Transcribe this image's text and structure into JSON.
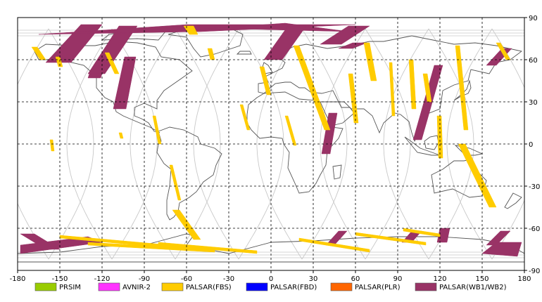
{
  "map": {
    "x_ticks": [
      "-180",
      "-150",
      "-120",
      "-90",
      "-60",
      "-30",
      "0",
      "30",
      "60",
      "90",
      "120",
      "150",
      "180"
    ],
    "y_ticks": [
      "90",
      "60",
      "30",
      "0",
      "-30",
      "-60",
      "-90"
    ],
    "lon_range": [
      -180,
      180
    ],
    "lat_range": [
      -90,
      90
    ],
    "grid": "dashed",
    "land_color": "#ffffff",
    "coastline_color": "#555555"
  },
  "legend": {
    "items": [
      {
        "label": "PRSIM",
        "color": "#99cc00"
      },
      {
        "label": "AVNIR-2",
        "color": "#ff33ff"
      },
      {
        "label": "PALSAR(FBS)",
        "color": "#ffcc00"
      },
      {
        "label": "PALSAR(FBD)",
        "color": "#0000ff"
      },
      {
        "label": "PALSAR(PLR)",
        "color": "#ff6600"
      },
      {
        "label": "PALSAR(WB1/WB2)",
        "color": "#993366"
      }
    ]
  },
  "chart_data": {
    "type": "map",
    "series": [
      {
        "name": "PALSAR(WB1/WB2)",
        "color": "#993366",
        "swaths": [
          [
            [
              -160,
              58
            ],
            [
              -142,
              58
            ],
            [
              -120,
              85
            ],
            [
              -135,
              85
            ]
          ],
          [
            [
              -130,
              50
            ],
            [
              -118,
              50
            ],
            [
              -95,
              84
            ],
            [
              -108,
              84
            ]
          ],
          [
            [
              -112,
              25
            ],
            [
              -103,
              25
            ],
            [
              -96,
              62
            ],
            [
              -104,
              62
            ]
          ],
          [
            [
              -165,
              78
            ],
            [
              -60,
              85
            ],
            [
              60,
              85
            ],
            [
              -50,
              80
            ]
          ],
          [
            [
              -60,
              81
            ],
            [
              10,
              86
            ],
            [
              55,
              80
            ],
            [
              -25,
              82
            ]
          ],
          [
            [
              -5,
              60
            ],
            [
              8,
              60
            ],
            [
              25,
              84
            ],
            [
              12,
              84
            ]
          ],
          [
            [
              35,
              71
            ],
            [
              50,
              71
            ],
            [
              70,
              84
            ],
            [
              55,
              84
            ]
          ],
          [
            [
              48,
              68
            ],
            [
              58,
              72
            ],
            [
              68,
              72
            ],
            [
              58,
              68
            ]
          ],
          [
            [
              36,
              -7
            ],
            [
              42,
              -7
            ],
            [
              47,
              22
            ],
            [
              41,
              22
            ]
          ],
          [
            [
              101,
              3
            ],
            [
              107,
              3
            ],
            [
              122,
              56
            ],
            [
              116,
              56
            ]
          ],
          [
            [
              153,
              56
            ],
            [
              160,
              56
            ],
            [
              171,
              68
            ],
            [
              164,
              68
            ]
          ],
          [
            [
              -130,
              47
            ],
            [
              -121,
              47
            ],
            [
              -120,
              50
            ],
            [
              -129,
              50
            ]
          ],
          [
            [
              -178,
              -64
            ],
            [
              -168,
              -64
            ],
            [
              -150,
              -75
            ],
            [
              -160,
              -75
            ]
          ],
          [
            [
              -178,
              -72
            ],
            [
              -130,
              -66
            ],
            [
              -120,
              -70
            ],
            [
              -178,
              -78
            ]
          ],
          [
            [
              48,
              -62
            ],
            [
              54,
              -62
            ],
            [
              45,
              -72
            ],
            [
              39,
              -72
            ]
          ],
          [
            [
              100,
              -62
            ],
            [
              107,
              -62
            ],
            [
              100,
              -70
            ],
            [
              93,
              -70
            ]
          ],
          [
            [
              163,
              -62
            ],
            [
              170,
              -62
            ],
            [
              160,
              -72
            ],
            [
              153,
              -72
            ]
          ],
          [
            [
              160,
              -70
            ],
            [
              178,
              -70
            ],
            [
              175,
              -80
            ],
            [
              150,
              -78
            ]
          ],
          [
            [
              120,
              -60
            ],
            [
              127,
              -60
            ],
            [
              125,
              -70
            ],
            [
              118,
              -70
            ]
          ]
        ]
      },
      {
        "name": "PALSAR(FBS)",
        "color": "#ffcc00",
        "swaths": [
          [
            [
              -170,
              69
            ],
            [
              -166,
              69
            ],
            [
              -160,
              60
            ],
            [
              -164,
              60
            ]
          ],
          [
            [
              -153,
              62
            ],
            [
              -150,
              62
            ],
            [
              -148,
              55
            ],
            [
              -151,
              55
            ]
          ],
          [
            [
              -118,
              65
            ],
            [
              -115,
              65
            ],
            [
              -108,
              50
            ],
            [
              -111,
              50
            ]
          ],
          [
            [
              -62,
              84
            ],
            [
              -55,
              84
            ],
            [
              -52,
              78
            ],
            [
              -58,
              78
            ]
          ],
          [
            [
              -45,
              68
            ],
            [
              -42,
              68
            ],
            [
              -40,
              60
            ],
            [
              -43,
              60
            ]
          ],
          [
            [
              -22,
              28
            ],
            [
              -20,
              28
            ],
            [
              -15,
              10
            ],
            [
              -17,
              10
            ]
          ],
          [
            [
              -8,
              55
            ],
            [
              -5,
              55
            ],
            [
              0,
              35
            ],
            [
              -3,
              35
            ]
          ],
          [
            [
              10,
              20
            ],
            [
              12,
              20
            ],
            [
              18,
              -1
            ],
            [
              16,
              -1
            ]
          ],
          [
            [
              16,
              70
            ],
            [
              20,
              70
            ],
            [
              42,
              10
            ],
            [
              38,
              10
            ]
          ],
          [
            [
              55,
              50
            ],
            [
              58,
              50
            ],
            [
              62,
              15
            ],
            [
              59,
              15
            ]
          ],
          [
            [
              66,
              72
            ],
            [
              70,
              72
            ],
            [
              75,
              45
            ],
            [
              71,
              45
            ]
          ],
          [
            [
              84,
              58
            ],
            [
              86,
              58
            ],
            [
              88,
              20
            ],
            [
              86,
              20
            ]
          ],
          [
            [
              98,
              60
            ],
            [
              101,
              60
            ],
            [
              103,
              25
            ],
            [
              100,
              25
            ]
          ],
          [
            [
              108,
              50
            ],
            [
              111,
              50
            ],
            [
              114,
              30
            ],
            [
              111,
              30
            ]
          ],
          [
            [
              131,
              70
            ],
            [
              134,
              70
            ],
            [
              140,
              10
            ],
            [
              137,
              10
            ]
          ],
          [
            [
              160,
              72
            ],
            [
              163,
              72
            ],
            [
              170,
              60
            ],
            [
              167,
              60
            ]
          ],
          [
            [
              133,
              0
            ],
            [
              138,
              0
            ],
            [
              160,
              -45
            ],
            [
              155,
              -45
            ]
          ],
          [
            [
              118,
              20
            ],
            [
              121,
              20
            ],
            [
              122,
              -10
            ],
            [
              119,
              -10
            ]
          ],
          [
            [
              -84,
              20
            ],
            [
              -82,
              20
            ],
            [
              -78,
              0
            ],
            [
              -80,
              0
            ]
          ],
          [
            [
              -157,
              3
            ],
            [
              -155,
              3
            ],
            [
              -154,
              -5
            ],
            [
              -156,
              -5
            ]
          ],
          [
            [
              -72,
              -15
            ],
            [
              -70,
              -15
            ],
            [
              -64,
              -40
            ],
            [
              -66,
              -40
            ]
          ],
          [
            [
              -70,
              -47
            ],
            [
              -65,
              -47
            ],
            [
              -50,
              -68
            ],
            [
              -55,
              -68
            ]
          ],
          [
            [
              -108,
              8
            ],
            [
              -106,
              8
            ],
            [
              -105,
              4
            ],
            [
              -107,
              4
            ]
          ],
          [
            [
              -150,
              -65
            ],
            [
              -60,
              -73
            ],
            [
              -60,
              -75
            ],
            [
              -150,
              -67
            ]
          ],
          [
            [
              -130,
              -70
            ],
            [
              -40,
              -75
            ],
            [
              -40,
              -77
            ],
            [
              -130,
              -72
            ]
          ],
          [
            [
              -80,
              -70
            ],
            [
              -10,
              -76
            ],
            [
              -10,
              -78
            ],
            [
              -80,
              -72
            ]
          ],
          [
            [
              20,
              -67
            ],
            [
              70,
              -75
            ],
            [
              70,
              -77
            ],
            [
              20,
              -69
            ]
          ],
          [
            [
              60,
              -63
            ],
            [
              110,
              -70
            ],
            [
              110,
              -72
            ],
            [
              60,
              -65
            ]
          ],
          [
            [
              94,
              -60
            ],
            [
              120,
              -64
            ],
            [
              120,
              -66
            ],
            [
              94,
              -62
            ]
          ]
        ]
      }
    ]
  }
}
